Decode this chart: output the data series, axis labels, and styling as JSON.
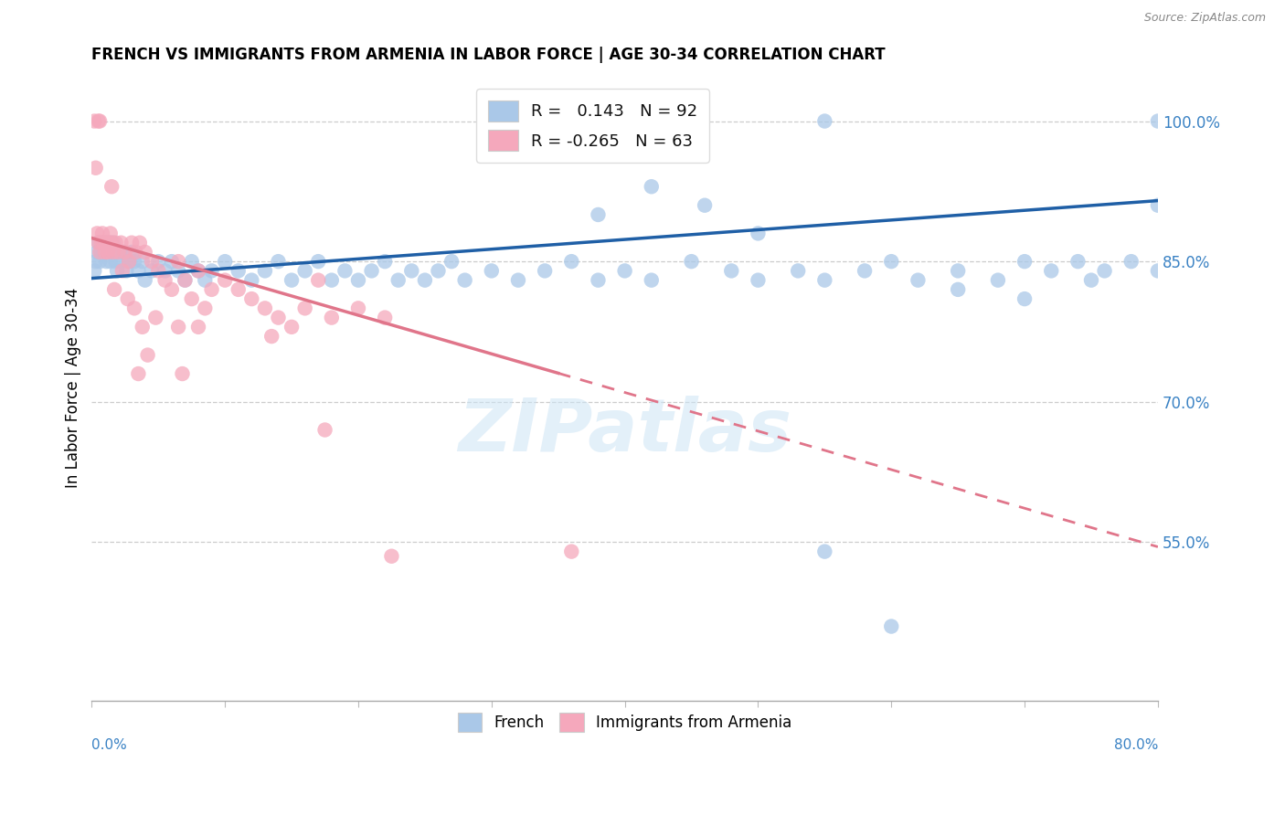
{
  "title": "FRENCH VS IMMIGRANTS FROM ARMENIA IN LABOR FORCE | AGE 30-34 CORRELATION CHART",
  "source": "Source: ZipAtlas.com",
  "ylabel": "In Labor Force | Age 30-34",
  "right_yticks": [
    55.0,
    70.0,
    85.0,
    100.0
  ],
  "right_ytick_labels": [
    "55.0%",
    "70.0%",
    "85.0%",
    "100.0%"
  ],
  "xlim": [
    0.0,
    80.0
  ],
  "ylim": [
    38.0,
    105.0
  ],
  "legend_r_blue": "0.143",
  "legend_n_blue": "92",
  "legend_r_pink": "-0.265",
  "legend_n_pink": "63",
  "blue_color": "#aac8e8",
  "pink_color": "#f5a8bc",
  "trendline_blue": "#1f5fa6",
  "trendline_pink": "#e0758a",
  "blue_trend_x0": 0.0,
  "blue_trend_y0": 83.2,
  "blue_trend_x1": 80.0,
  "blue_trend_y1": 91.5,
  "pink_trend_x0": 0.0,
  "pink_trend_y0": 87.5,
  "pink_trend_x1": 80.0,
  "pink_trend_y1": 54.5,
  "blue_scatter_x": [
    0.2,
    0.3,
    0.4,
    0.5,
    0.6,
    0.7,
    0.8,
    0.9,
    1.0,
    1.1,
    1.2,
    1.3,
    1.4,
    1.5,
    1.6,
    1.7,
    1.8,
    1.9,
    2.0,
    2.2,
    2.4,
    2.6,
    2.8,
    3.0,
    3.2,
    3.5,
    3.8,
    4.0,
    4.5,
    5.0,
    5.5,
    6.0,
    6.5,
    7.0,
    7.5,
    8.0,
    8.5,
    9.0,
    10.0,
    11.0,
    12.0,
    13.0,
    14.0,
    15.0,
    16.0,
    17.0,
    18.0,
    19.0,
    20.0,
    21.0,
    22.0,
    23.0,
    24.0,
    25.0,
    26.0,
    27.0,
    28.0,
    30.0,
    32.0,
    34.0,
    36.0,
    38.0,
    40.0,
    42.0,
    45.0,
    48.0,
    50.0,
    53.0,
    55.0,
    58.0,
    60.0,
    62.0,
    65.0,
    68.0,
    70.0,
    72.0,
    74.0,
    76.0,
    78.0,
    80.0,
    38.0,
    42.0,
    46.0,
    50.0,
    55.0,
    60.0,
    65.0,
    70.0,
    75.0,
    80.0,
    55.0,
    80.0
  ],
  "blue_scatter_y": [
    84.0,
    85.0,
    86.0,
    87.0,
    85.0,
    86.0,
    87.0,
    86.0,
    87.0,
    85.0,
    86.0,
    87.0,
    85.0,
    86.0,
    87.0,
    86.0,
    85.0,
    84.0,
    86.0,
    85.0,
    86.0,
    84.0,
    85.0,
    86.0,
    85.0,
    84.0,
    85.0,
    83.0,
    84.0,
    85.0,
    84.0,
    85.0,
    84.0,
    83.0,
    85.0,
    84.0,
    83.0,
    84.0,
    85.0,
    84.0,
    83.0,
    84.0,
    85.0,
    83.0,
    84.0,
    85.0,
    83.0,
    84.0,
    83.0,
    84.0,
    85.0,
    83.0,
    84.0,
    83.0,
    84.0,
    85.0,
    83.0,
    84.0,
    83.0,
    84.0,
    85.0,
    83.0,
    84.0,
    83.0,
    85.0,
    84.0,
    83.0,
    84.0,
    83.0,
    84.0,
    85.0,
    83.0,
    84.0,
    83.0,
    85.0,
    84.0,
    85.0,
    84.0,
    85.0,
    84.0,
    90.0,
    93.0,
    91.0,
    88.0,
    54.0,
    46.0,
    82.0,
    81.0,
    83.0,
    91.0,
    100.0,
    100.0
  ],
  "pink_scatter_x": [
    0.2,
    0.3,
    0.4,
    0.5,
    0.6,
    0.7,
    0.8,
    0.9,
    1.0,
    1.1,
    1.2,
    1.3,
    1.4,
    1.5,
    1.6,
    1.8,
    2.0,
    2.2,
    2.5,
    2.8,
    3.0,
    3.3,
    3.6,
    4.0,
    4.5,
    5.0,
    5.5,
    6.0,
    6.5,
    7.0,
    8.0,
    9.0,
    10.0,
    11.0,
    12.0,
    13.0,
    14.0,
    15.0,
    16.0,
    17.0,
    18.0,
    20.0,
    22.0,
    7.5,
    8.5,
    3.8,
    4.8,
    2.3,
    1.7,
    2.7,
    3.2,
    0.5,
    0.6,
    1.5,
    6.5,
    13.5,
    17.5,
    22.5,
    36.0,
    8.0,
    4.2,
    3.5,
    6.8
  ],
  "pink_scatter_y": [
    100.0,
    95.0,
    88.0,
    87.0,
    86.0,
    87.0,
    88.0,
    87.0,
    86.0,
    87.0,
    86.0,
    87.0,
    88.0,
    87.0,
    86.0,
    87.0,
    86.0,
    87.0,
    86.0,
    85.0,
    87.0,
    86.0,
    87.0,
    86.0,
    85.0,
    84.0,
    83.0,
    82.0,
    85.0,
    83.0,
    84.0,
    82.0,
    83.0,
    82.0,
    81.0,
    80.0,
    79.0,
    78.0,
    80.0,
    83.0,
    79.0,
    80.0,
    79.0,
    81.0,
    80.0,
    78.0,
    79.0,
    84.0,
    82.0,
    81.0,
    80.0,
    100.0,
    100.0,
    93.0,
    78.0,
    77.0,
    67.0,
    53.5,
    54.0,
    78.0,
    75.0,
    73.0,
    73.0
  ]
}
